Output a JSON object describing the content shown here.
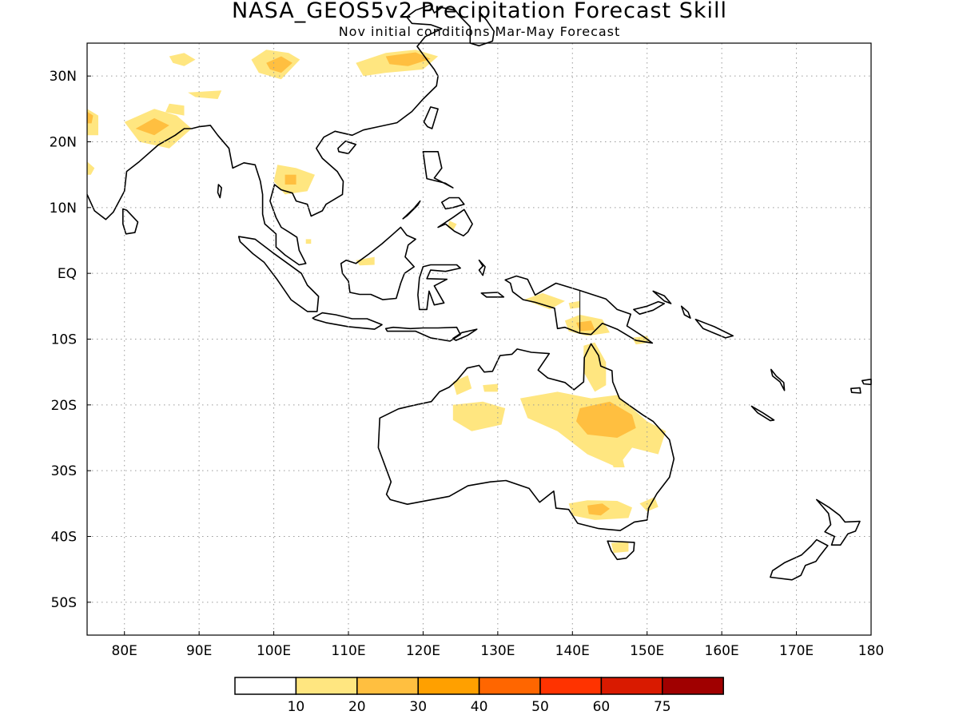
{
  "title": "NASA_GEOS5v2 Precipitation Forecast Skill",
  "subtitle": "Nov initial conditions  Mar-May Forecast",
  "lat_ticks": [
    "30N",
    "20N",
    "10N",
    "EQ",
    "10S",
    "20S",
    "30S",
    "40S",
    "50S"
  ],
  "lon_ticks": [
    "80E",
    "90E",
    "100E",
    "110E",
    "120E",
    "130E",
    "140E",
    "150E",
    "160E",
    "170E",
    "180"
  ],
  "colorbar": {
    "labels": [
      "10",
      "20",
      "30",
      "40",
      "50",
      "60",
      "75"
    ],
    "colors": [
      "#ffffff",
      "#ffe680",
      "#ffbf40",
      "#ffa000",
      "#ff6600",
      "#ff3300",
      "#d91a00",
      "#a00000"
    ]
  },
  "map": {
    "projection": "lat-lon",
    "lon_range": [
      75,
      180
    ],
    "lat_range": [
      -55,
      35
    ],
    "grid": "dotted",
    "skill_regions": [
      {
        "region": "NE India / Bangladesh",
        "level": "10-20"
      },
      {
        "region": "Tibet",
        "level": "10-30"
      },
      {
        "region": "Central / North China",
        "level": "10-30"
      },
      {
        "region": "Thailand",
        "level": "10-30"
      },
      {
        "region": "New Guinea",
        "level": "10-30"
      },
      {
        "region": "Northern Australia",
        "level": "10-20"
      },
      {
        "region": "Queensland",
        "level": "10-30"
      },
      {
        "region": "SE Australia",
        "level": "10-30"
      },
      {
        "region": "Tasmania",
        "level": "10-20"
      }
    ]
  }
}
